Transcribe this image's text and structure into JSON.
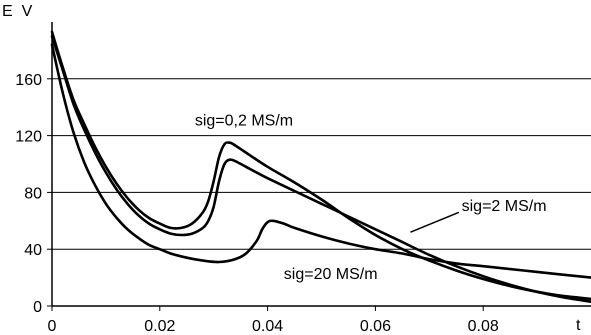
{
  "chart_data": {
    "type": "line",
    "xlabel": "t",
    "ylabel": "E  V",
    "xlim": [
      0,
      0.1
    ],
    "ylim": [
      0,
      200
    ],
    "x_ticks": [
      0,
      0.02,
      0.04,
      0.06,
      0.08
    ],
    "x_tick_labels": [
      "0",
      "0.02",
      "0.04",
      "0.06",
      "0.08"
    ],
    "y_ticks": [
      0,
      40,
      80,
      120,
      160
    ],
    "y_tick_labels": [
      "0",
      "40",
      "80",
      "120",
      "160"
    ],
    "grid": "horizontal",
    "legend": "none",
    "series": [
      {
        "name": "sig=0,2 MS/m",
        "x": [
          0,
          0.002,
          0.004,
          0.006,
          0.008,
          0.01,
          0.012,
          0.014,
          0.016,
          0.018,
          0.02,
          0.022,
          0.024,
          0.026,
          0.028,
          0.029,
          0.03,
          0.031,
          0.032,
          0.033,
          0.034,
          0.036,
          0.04,
          0.045,
          0.05,
          0.055,
          0.06,
          0.065,
          0.07,
          0.075,
          0.08,
          0.085,
          0.09,
          0.095,
          0.1
        ],
        "y": [
          193,
          168,
          145,
          128,
          112,
          98,
          86,
          76,
          68,
          62,
          58,
          55,
          55,
          58,
          66,
          74,
          88,
          105,
          114,
          115,
          113,
          108,
          98,
          87,
          75,
          62,
          50,
          40,
          32,
          25,
          19,
          14,
          10,
          7,
          5
        ]
      },
      {
        "name": "sig=2 MS/m",
        "x": [
          0,
          0.002,
          0.004,
          0.006,
          0.008,
          0.01,
          0.012,
          0.014,
          0.016,
          0.018,
          0.02,
          0.022,
          0.024,
          0.026,
          0.028,
          0.029,
          0.03,
          0.031,
          0.032,
          0.033,
          0.034,
          0.036,
          0.04,
          0.045,
          0.05,
          0.055,
          0.06,
          0.065,
          0.07,
          0.075,
          0.08,
          0.085,
          0.09,
          0.095,
          0.1
        ],
        "y": [
          190,
          166,
          142,
          124,
          108,
          94,
          82,
          72,
          64,
          58,
          54,
          51,
          50,
          51,
          55,
          60,
          70,
          88,
          100,
          103,
          102,
          98,
          90,
          81,
          72,
          63,
          54,
          45,
          36,
          28,
          21,
          15,
          10,
          6,
          3
        ]
      },
      {
        "name": "sig=20 MS/m",
        "x": [
          0,
          0.002,
          0.004,
          0.006,
          0.008,
          0.01,
          0.012,
          0.014,
          0.016,
          0.018,
          0.02,
          0.022,
          0.025,
          0.028,
          0.031,
          0.034,
          0.036,
          0.038,
          0.039,
          0.04,
          0.041,
          0.043,
          0.045,
          0.05,
          0.055,
          0.06,
          0.065,
          0.07,
          0.075,
          0.08,
          0.085,
          0.09,
          0.095,
          0.1
        ],
        "y": [
          184,
          150,
          122,
          101,
          85,
          72,
          62,
          54,
          48,
          43,
          40,
          37,
          34,
          32,
          31,
          33,
          37,
          46,
          54,
          59,
          60,
          58,
          55,
          49,
          44,
          40,
          37,
          33,
          30,
          28,
          26,
          24,
          22,
          20
        ]
      }
    ],
    "annotations": [
      {
        "text": "sig=0,2 MS/m",
        "x": 0.0265,
        "y": 127
      },
      {
        "text": "sig=2 MS/m",
        "x": 0.076,
        "y": 67
      },
      {
        "text": "sig=20 MS/m",
        "x": 0.043,
        "y": 19
      }
    ]
  }
}
